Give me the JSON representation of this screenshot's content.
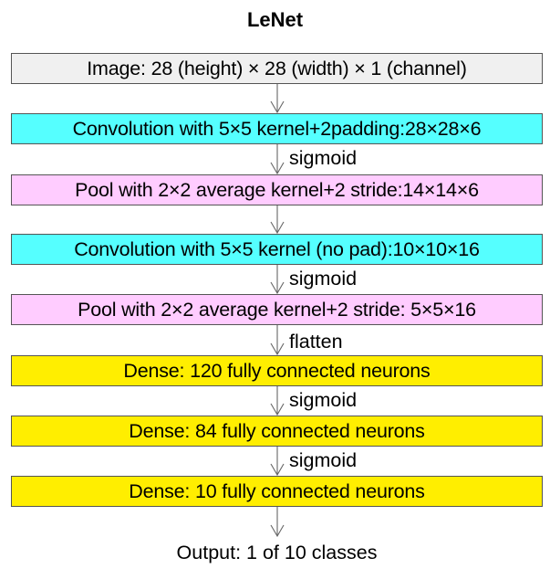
{
  "title": "LeNet",
  "colors": {
    "input": "#f0f0f0",
    "conv": "#55ffff",
    "pool": "#ffccff",
    "dense": "#ffee00",
    "border": "#555555",
    "arrow": "#666666"
  },
  "layers": [
    {
      "label": "Image: 28 (height) × 28 (width) × 1 (channel)",
      "kind": "input"
    },
    {
      "label": "Convolution with 5×5 kernel+2padding:28×28×6",
      "kind": "conv"
    },
    {
      "label": "Pool with 2×2 average kernel+2 stride:14×14×6",
      "kind": "pool"
    },
    {
      "label": "Convolution with 5×5 kernel (no pad):10×10×16",
      "kind": "conv"
    },
    {
      "label": "Pool with 2×2 average kernel+2 stride: 5×5×16",
      "kind": "pool"
    },
    {
      "label": "Dense: 120 fully connected neurons",
      "kind": "dense"
    },
    {
      "label": "Dense: 84 fully connected neurons",
      "kind": "dense"
    },
    {
      "label": "Dense: 10 fully connected neurons",
      "kind": "dense"
    }
  ],
  "edges": [
    "",
    "sigmoid",
    "",
    "sigmoid",
    "flatten",
    "sigmoid",
    "sigmoid",
    ""
  ],
  "output": "Output: 1 of 10 classes"
}
